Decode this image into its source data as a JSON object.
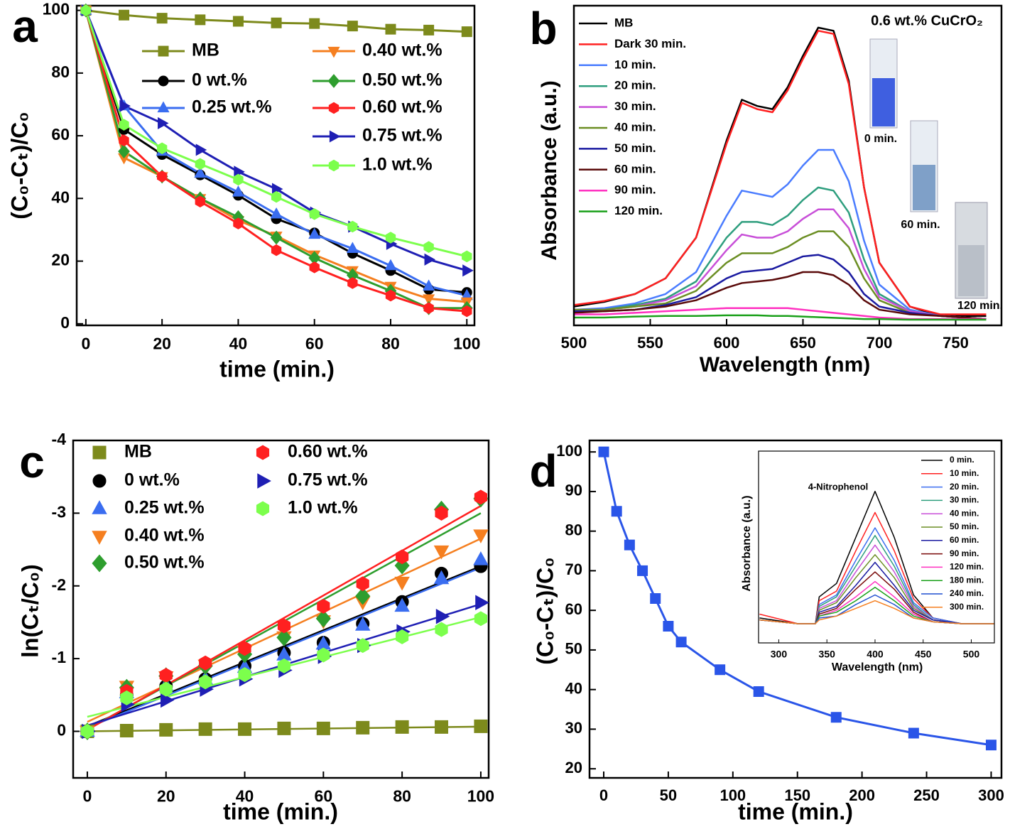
{
  "chart_data": [
    {
      "type": "line",
      "panel_label": "a",
      "xlabel": "time (min.)",
      "ylabel": "(C₀-Cₜ)/C₀",
      "x": [
        0,
        10,
        20,
        30,
        40,
        50,
        60,
        70,
        80,
        90,
        100
      ],
      "xlim": [
        -2.4,
        102
      ],
      "xticks": [
        0,
        20,
        40,
        60,
        80,
        100
      ],
      "ylim": [
        -0.5,
        101.5
      ],
      "yticks": [
        0,
        20,
        40,
        60,
        80,
        100
      ],
      "series": [
        {
          "name": "MB",
          "color": "#7d8a1c",
          "marker": "square",
          "values": [
            100,
            98.5,
            97.5,
            97,
            96.5,
            96,
            95.8,
            95,
            94,
            93.7,
            93.2
          ]
        },
        {
          "name": "0 wt.%",
          "color": "#000000",
          "marker": "circle",
          "values": [
            100,
            62,
            54,
            47.5,
            41,
            33.5,
            29,
            22.5,
            17,
            11,
            10
          ]
        },
        {
          "name": "0.25 wt.%",
          "color": "#3a6df0",
          "marker": "triup",
          "values": [
            100,
            69.5,
            55,
            48,
            42,
            35,
            28.5,
            24,
            18.5,
            12,
            9
          ]
        },
        {
          "name": "0.40 wt.%",
          "color": "#f57f20",
          "marker": "tridown",
          "values": [
            100,
            53,
            47,
            40,
            33,
            28,
            22,
            17,
            12,
            8,
            7
          ]
        },
        {
          "name": "0.50 wt.%",
          "color": "#2e9e2e",
          "marker": "diamond",
          "values": [
            100,
            55,
            47,
            40,
            34,
            27.5,
            21,
            15.5,
            10.5,
            5,
            5
          ]
        },
        {
          "name": "0.60 wt.%",
          "color": "#ff2020",
          "marker": "hexagon",
          "values": [
            100,
            58.5,
            47,
            39,
            32,
            23.5,
            18,
            13,
            9,
            5,
            4
          ]
        },
        {
          "name": "0.75 wt.%",
          "color": "#1f1fb4",
          "marker": "triright",
          "values": [
            100,
            69.5,
            64,
            55.5,
            48.5,
            43,
            35.5,
            31,
            25.5,
            20.5,
            17
          ]
        },
        {
          "name": "1.0 wt.%",
          "color": "#7cff4c",
          "marker": "hexagon",
          "values": [
            100,
            63.5,
            56,
            51,
            46,
            40.5,
            35,
            31,
            27.5,
            24.5,
            21.5
          ]
        }
      ]
    },
    {
      "type": "line",
      "panel_label": "b",
      "xlabel": "Wavelength (nm)",
      "ylabel": "Absorbance (a.u.)",
      "x": [
        500,
        520,
        540,
        560,
        580,
        600,
        610,
        620,
        630,
        640,
        650,
        660,
        670,
        680,
        690,
        700,
        720,
        740,
        770
      ],
      "xlim": [
        500,
        780
      ],
      "xticks": [
        500,
        550,
        600,
        650,
        700,
        750
      ],
      "ylim": [
        0,
        1.02
      ],
      "annotations": [
        "0.6 wt.% CuCrO₂",
        "0 min.",
        "60 min.",
        "120 min."
      ],
      "series": [
        {
          "name": "MB",
          "color": "#000000",
          "values": [
            0.06,
            0.075,
            0.1,
            0.15,
            0.28,
            0.59,
            0.72,
            0.7,
            0.69,
            0.76,
            0.86,
            0.95,
            0.94,
            0.78,
            0.44,
            0.2,
            0.06,
            0.03,
            0.03
          ]
        },
        {
          "name": "Dark 30 min.",
          "color": "#ff2020",
          "values": [
            0.065,
            0.078,
            0.1,
            0.15,
            0.28,
            0.58,
            0.71,
            0.69,
            0.68,
            0.75,
            0.85,
            0.94,
            0.93,
            0.77,
            0.44,
            0.2,
            0.06,
            0.035,
            0.035
          ]
        },
        {
          "name": "10 min.",
          "color": "#4a7cff",
          "values": [
            0.05,
            0.055,
            0.07,
            0.1,
            0.17,
            0.35,
            0.43,
            0.42,
            0.41,
            0.45,
            0.51,
            0.56,
            0.56,
            0.46,
            0.27,
            0.13,
            0.05,
            0.03,
            0.02
          ]
        },
        {
          "name": "20 min.",
          "color": "#2e9e7e",
          "values": [
            0.05,
            0.05,
            0.065,
            0.085,
            0.14,
            0.28,
            0.33,
            0.33,
            0.32,
            0.35,
            0.4,
            0.44,
            0.43,
            0.36,
            0.21,
            0.1,
            0.045,
            0.03,
            0.02
          ]
        },
        {
          "name": "30 min.",
          "color": "#c84fd8",
          "values": [
            0.05,
            0.05,
            0.06,
            0.08,
            0.125,
            0.24,
            0.29,
            0.28,
            0.28,
            0.3,
            0.34,
            0.37,
            0.37,
            0.31,
            0.18,
            0.09,
            0.045,
            0.03,
            0.02
          ]
        },
        {
          "name": "40 min.",
          "color": "#6b8e23",
          "values": [
            0.05,
            0.05,
            0.06,
            0.07,
            0.11,
            0.2,
            0.23,
            0.23,
            0.23,
            0.25,
            0.28,
            0.3,
            0.3,
            0.25,
            0.15,
            0.08,
            0.04,
            0.03,
            0.02
          ]
        },
        {
          "name": "50 min.",
          "color": "#1a1aa0",
          "values": [
            0.045,
            0.045,
            0.05,
            0.065,
            0.09,
            0.15,
            0.17,
            0.175,
            0.18,
            0.2,
            0.22,
            0.225,
            0.21,
            0.17,
            0.1,
            0.06,
            0.04,
            0.03,
            0.02
          ]
        },
        {
          "name": "60 min.",
          "color": "#5a0a0a",
          "values": [
            0.04,
            0.045,
            0.05,
            0.06,
            0.08,
            0.12,
            0.135,
            0.14,
            0.145,
            0.155,
            0.17,
            0.17,
            0.16,
            0.13,
            0.08,
            0.05,
            0.035,
            0.03,
            0.02
          ]
        },
        {
          "name": "90 min.",
          "color": "#ff30c0",
          "values": [
            0.035,
            0.035,
            0.04,
            0.045,
            0.05,
            0.055,
            0.055,
            0.055,
            0.055,
            0.055,
            0.05,
            0.045,
            0.04,
            0.035,
            0.03,
            0.025,
            0.02,
            0.02,
            0.02
          ]
        },
        {
          "name": "120 min.",
          "color": "#1aa01a",
          "values": [
            0.025,
            0.025,
            0.028,
            0.03,
            0.03,
            0.032,
            0.032,
            0.032,
            0.03,
            0.03,
            0.028,
            0.026,
            0.024,
            0.022,
            0.02,
            0.02,
            0.018,
            0.018,
            0.018
          ]
        }
      ]
    },
    {
      "type": "scatter",
      "panel_label": "c",
      "xlabel": "time (min.)",
      "ylabel": "ln(Cₜ/C₀)",
      "x": [
        0,
        10,
        20,
        30,
        40,
        50,
        60,
        70,
        80,
        90,
        100
      ],
      "xlim": [
        -3.6,
        102
      ],
      "xticks": [
        0,
        20,
        40,
        60,
        80,
        100
      ],
      "ylim": [
        0.64,
        -4
      ],
      "yticks": [
        0,
        -1,
        -2,
        -3,
        -4
      ],
      "series": [
        {
          "name": "MB",
          "color": "#7d8a1c",
          "marker": "square",
          "values": [
            0,
            -0.01,
            -0.02,
            -0.03,
            -0.03,
            -0.04,
            -0.04,
            -0.05,
            -0.06,
            -0.06,
            -0.07
          ],
          "fit": [
            0,
            -0.065
          ]
        },
        {
          "name": "0 wt.%",
          "color": "#000000",
          "marker": "circle",
          "values": [
            0,
            -0.5,
            -0.62,
            -0.72,
            -0.9,
            -1.08,
            -1.22,
            -1.48,
            -1.78,
            -2.17,
            -2.27
          ],
          "fit": [
            -0.07,
            -2.27
          ]
        },
        {
          "name": "0.25 wt.%",
          "color": "#3a6df0",
          "marker": "triup",
          "values": [
            0,
            -0.53,
            -0.63,
            -0.72,
            -0.88,
            -1.05,
            -1.2,
            -1.46,
            -1.72,
            -2.1,
            -2.36
          ],
          "fit": [
            -0.05,
            -2.25
          ]
        },
        {
          "name": "0.40 wt.%",
          "color": "#f57f20",
          "marker": "tridown",
          "values": [
            0,
            -0.62,
            -0.75,
            -0.91,
            -1.1,
            -1.3,
            -1.52,
            -1.78,
            -2.05,
            -2.48,
            -2.7
          ],
          "fit": [
            -0.13,
            -2.65
          ]
        },
        {
          "name": "0.50 wt.%",
          "color": "#2e9e2e",
          "marker": "diamond",
          "values": [
            0,
            -0.6,
            -0.76,
            -0.9,
            -1.06,
            -1.29,
            -1.55,
            -1.86,
            -2.28,
            -3.05,
            -3.2
          ],
          "fit": [
            -0.03,
            -3
          ]
        },
        {
          "name": "0.60 wt.%",
          "color": "#ff2020",
          "marker": "hexagon",
          "values": [
            0,
            -0.55,
            -0.77,
            -0.94,
            -1.14,
            -1.45,
            -1.72,
            -2.03,
            -2.4,
            -3,
            -3.22
          ],
          "fit": [
            -0.02,
            -3.1
          ]
        },
        {
          "name": "0.75 wt.%",
          "color": "#1f1fb4",
          "marker": "triright",
          "values": [
            0,
            -0.37,
            -0.43,
            -0.58,
            -0.72,
            -0.84,
            -1.03,
            -1.18,
            -1.37,
            -1.58,
            -1.77
          ],
          "fit": [
            -0.08,
            -1.75
          ]
        },
        {
          "name": "1.0 wt.%",
          "color": "#7cff4c",
          "marker": "hexagon",
          "values": [
            0,
            -0.46,
            -0.58,
            -0.68,
            -0.78,
            -0.9,
            -1.05,
            -1.18,
            -1.3,
            -1.4,
            -1.55
          ],
          "fit": [
            -0.2,
            -1.57
          ]
        }
      ]
    },
    {
      "type": "line",
      "panel_label": "d",
      "xlabel": "time (min.)",
      "ylabel": "(C₀-Cₜ)/C₀",
      "x": [
        0,
        10,
        20,
        30,
        40,
        50,
        60,
        90,
        120,
        180,
        240,
        300
      ],
      "xlim": [
        -11,
        308
      ],
      "xticks": [
        0,
        50,
        100,
        150,
        200,
        250,
        300
      ],
      "ylim": [
        17.7,
        102.9
      ],
      "yticks": [
        20,
        30,
        40,
        50,
        60,
        70,
        80,
        90,
        100
      ],
      "series": [
        {
          "color": "#2a55e8",
          "marker": "square",
          "values": [
            100,
            85,
            76.5,
            70,
            63,
            56,
            52,
            45,
            39.5,
            33,
            29,
            26
          ]
        }
      ]
    },
    {
      "type": "line",
      "xlabel": "Wavelength (nm)",
      "ylabel": "Absorbance (a.u.)",
      "x": [
        280,
        320,
        338,
        342,
        360,
        380,
        400,
        420,
        440,
        460,
        490,
        524
      ],
      "xlim": [
        279,
        524
      ],
      "xticks": [
        300,
        350,
        400,
        450,
        500
      ],
      "ylim": [
        0,
        1
      ],
      "annotations": [
        "4-Nitrophenol"
      ],
      "series": [
        {
          "name": "0 min.",
          "color": "#000000",
          "values": [
            0.13,
            0.1,
            0.1,
            0.24,
            0.31,
            0.55,
            0.79,
            0.55,
            0.25,
            0.13,
            0.1,
            0.1
          ]
        },
        {
          "name": "10 min.",
          "color": "#ff2020",
          "values": [
            0.15,
            0.1,
            0.1,
            0.22,
            0.27,
            0.48,
            0.68,
            0.48,
            0.23,
            0.13,
            0.1,
            0.1
          ]
        },
        {
          "name": "20 min.",
          "color": "#3a6df0",
          "values": [
            0.12,
            0.1,
            0.1,
            0.2,
            0.25,
            0.43,
            0.6,
            0.43,
            0.21,
            0.13,
            0.1,
            0.1
          ]
        },
        {
          "name": "30 min.",
          "color": "#2e9e7e",
          "values": [
            0.12,
            0.1,
            0.1,
            0.19,
            0.24,
            0.4,
            0.56,
            0.4,
            0.2,
            0.12,
            0.1,
            0.1
          ]
        },
        {
          "name": "40 min.",
          "color": "#c84fd8",
          "values": [
            0.12,
            0.1,
            0.1,
            0.18,
            0.22,
            0.37,
            0.51,
            0.37,
            0.19,
            0.12,
            0.1,
            0.1
          ]
        },
        {
          "name": "50 min.",
          "color": "#6b8e23",
          "values": [
            0.12,
            0.1,
            0.1,
            0.17,
            0.21,
            0.34,
            0.46,
            0.34,
            0.18,
            0.12,
            0.1,
            0.1
          ]
        },
        {
          "name": "60 min.",
          "color": "#1a1aa0",
          "values": [
            0.12,
            0.1,
            0.1,
            0.16,
            0.19,
            0.3,
            0.42,
            0.3,
            0.17,
            0.12,
            0.1,
            0.1
          ]
        },
        {
          "name": "90 min.",
          "color": "#7a0a0a",
          "values": [
            0.12,
            0.1,
            0.1,
            0.15,
            0.18,
            0.28,
            0.37,
            0.28,
            0.16,
            0.11,
            0.1,
            0.1
          ]
        },
        {
          "name": "120 min.",
          "color": "#ff30c0",
          "values": [
            0.12,
            0.1,
            0.1,
            0.14,
            0.17,
            0.24,
            0.32,
            0.24,
            0.15,
            0.11,
            0.1,
            0.1
          ]
        },
        {
          "name": "180 min.",
          "color": "#1aa01a",
          "values": [
            0.12,
            0.1,
            0.1,
            0.14,
            0.16,
            0.22,
            0.29,
            0.22,
            0.14,
            0.11,
            0.1,
            0.1
          ]
        },
        {
          "name": "240 min.",
          "color": "#1f4fd0",
          "values": [
            0.12,
            0.1,
            0.1,
            0.13,
            0.14,
            0.2,
            0.25,
            0.2,
            0.13,
            0.11,
            0.1,
            0.1
          ]
        },
        {
          "name": "300 min.",
          "color": "#f57f20",
          "values": [
            0.12,
            0.1,
            0.1,
            0.12,
            0.14,
            0.18,
            0.22,
            0.18,
            0.13,
            0.11,
            0.1,
            0.1
          ]
        }
      ]
    }
  ]
}
